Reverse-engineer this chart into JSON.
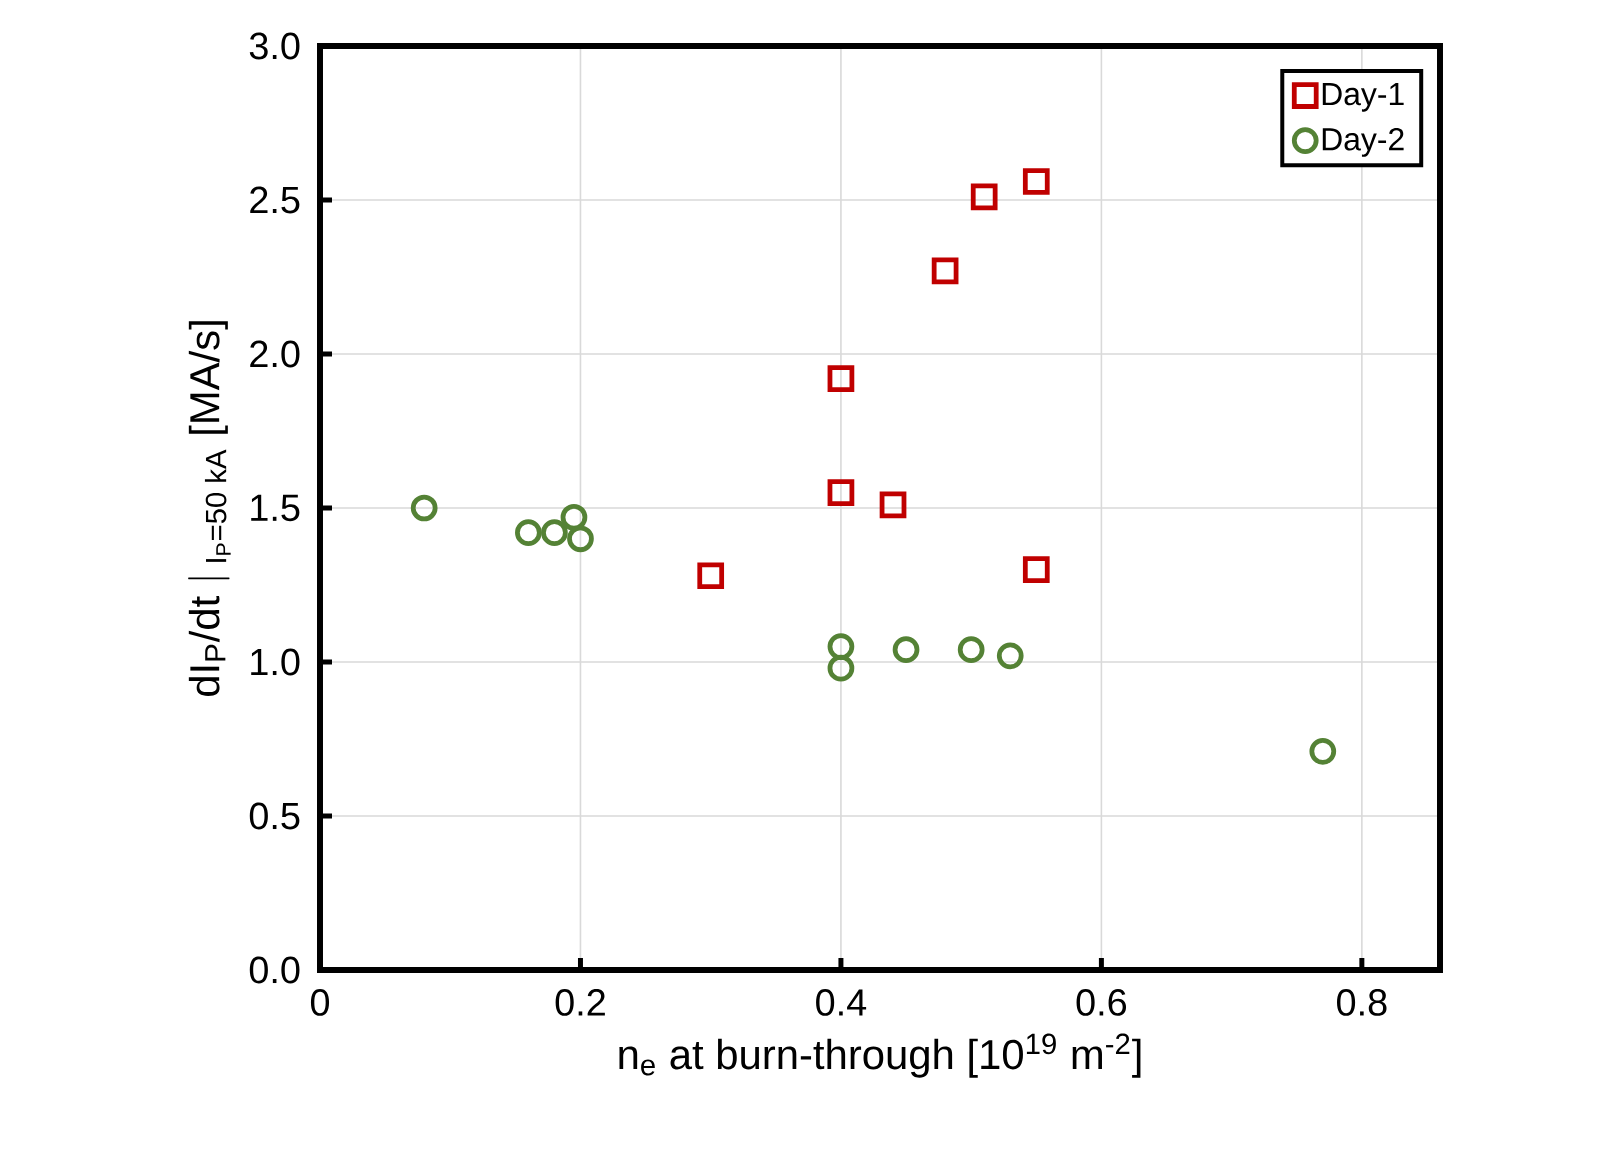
{
  "chart_data": {
    "type": "scatter",
    "xlabel": "n$_{e}$ at burn-through [10$^{19}$ m$^{-2}$]",
    "ylabel": "\\text{dI}_{\\text{P}}\\text{/dt }|_{\\text{ I}_{\\text{P}}\\text{=50 kA}}\\text{ [MA/s]}",
    "xlim": [
      0,
      0.86
    ],
    "ylim": [
      0,
      3.0
    ],
    "xticks": [
      0,
      0.2,
      0.4,
      0.6,
      0.8
    ],
    "yticks": [
      {
        "value": 0,
        "label": "0.0"
      },
      {
        "value": 0.5,
        "label": "0.5"
      },
      {
        "value": 1.0,
        "label": "1.0"
      },
      {
        "value": 1.5,
        "label": "1.5"
      },
      {
        "value": 2.0,
        "label": "2.0"
      },
      {
        "value": 2.5,
        "label": "2.5"
      },
      {
        "value": 3.0,
        "label": "3.0"
      }
    ],
    "grid": true,
    "legend": "top right",
    "series": [
      {
        "name": "Day-1",
        "color": "#c00000",
        "marker": "square",
        "x": [
          0.3,
          0.4,
          0.4,
          0.44,
          0.48,
          0.51,
          0.55,
          0.55
        ],
        "values": [
          1.28,
          1.92,
          1.55,
          1.51,
          2.27,
          2.51,
          2.56,
          1.3
        ]
      },
      {
        "name": "Day-2",
        "color": "#548235",
        "marker": "circle",
        "x": [
          0.08,
          0.16,
          0.18,
          0.195,
          0.2,
          0.4,
          0.4,
          0.45,
          0.5,
          0.53,
          0.77
        ],
        "values": [
          1.5,
          1.42,
          1.42,
          1.47,
          1.4,
          1.05,
          0.98,
          1.04,
          1.04,
          1.02,
          0.71
        ]
      }
    ]
  }
}
